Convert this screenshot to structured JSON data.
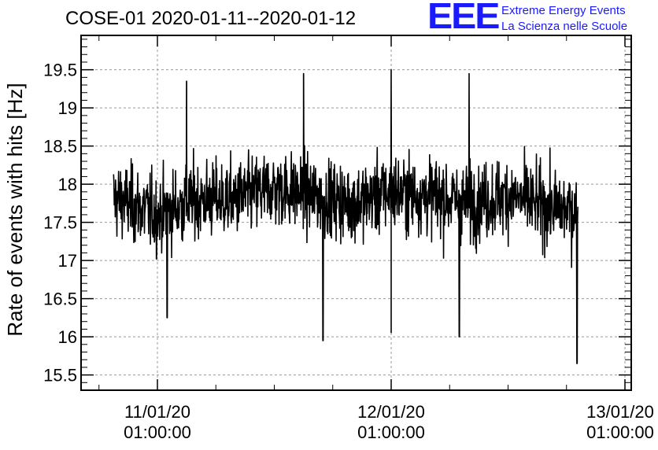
{
  "chart_data": {
    "type": "line",
    "title": "COSE-01 2020-01-11--2020-01-12",
    "ylabel": "Rate of events with hits [Hz]",
    "xlabel": "",
    "ylim": [
      15.3,
      19.95
    ],
    "yticks": [
      15.5,
      16,
      16.5,
      17,
      17.5,
      18,
      18.5,
      19,
      19.5
    ],
    "ytick_labels": [
      "15.5",
      "16",
      "16.5",
      "17",
      "17.5",
      "18",
      "18.5",
      "19",
      "19.5"
    ],
    "xticks": [
      {
        "date": "11/01/20",
        "time": "01:00:00"
      },
      {
        "date": "12/01/20",
        "time": "01:00:00"
      },
      {
        "date": "13/01/20",
        "time": "01:00:00"
      }
    ],
    "grid": true,
    "color": "#000000",
    "series": [
      {
        "x_start": "2020-01-10 20:30",
        "x_end": "2020-01-12 20:10",
        "summary": {
          "mean": 17.8,
          "min": 15.65,
          "max": 19.5
        },
        "values_bins": [
          {
            "x": "2020-01-10 21:00",
            "mean": 17.8
          },
          {
            "x": "2020-01-11 01:00",
            "mean": 17.6
          },
          {
            "x": "2020-01-11 05:00",
            "mean": 17.8
          },
          {
            "x": "2020-01-11 09:00",
            "mean": 17.8
          },
          {
            "x": "2020-01-11 13:00",
            "mean": 17.95
          },
          {
            "x": "2020-01-11 17:00",
            "mean": 17.85
          },
          {
            "x": "2020-01-11 21:00",
            "mean": 17.75
          },
          {
            "x": "2020-01-12 01:00",
            "mean": 17.9
          },
          {
            "x": "2020-01-12 05:00",
            "mean": 17.85
          },
          {
            "x": "2020-01-12 09:00",
            "mean": 17.75
          },
          {
            "x": "2020-01-12 13:00",
            "mean": 17.85
          },
          {
            "x": "2020-01-12 17:00",
            "mean": 17.7
          },
          {
            "x": "2020-01-12 20:00",
            "mean": 17.65
          }
        ],
        "extremes": [
          {
            "x": "2020-01-11 02:00",
            "y": 16.25
          },
          {
            "x": "2020-01-11 18:00",
            "y": 15.95
          },
          {
            "x": "2020-01-12 01:00",
            "y": 16.05
          },
          {
            "x": "2020-01-12 08:00",
            "y": 16.0
          },
          {
            "x": "2020-01-12 20:05",
            "y": 15.65
          },
          {
            "x": "2020-01-11 04:00",
            "y": 19.35
          },
          {
            "x": "2020-01-11 16:00",
            "y": 19.45
          },
          {
            "x": "2020-01-12 01:00",
            "y": 19.5
          },
          {
            "x": "2020-01-12 09:00",
            "y": 19.45
          }
        ]
      }
    ]
  },
  "logo": {
    "mark": "EEE",
    "line1": "Extreme Energy Events",
    "line2": "La Scienza nelle Scuole",
    "color": "#1a1aff"
  }
}
